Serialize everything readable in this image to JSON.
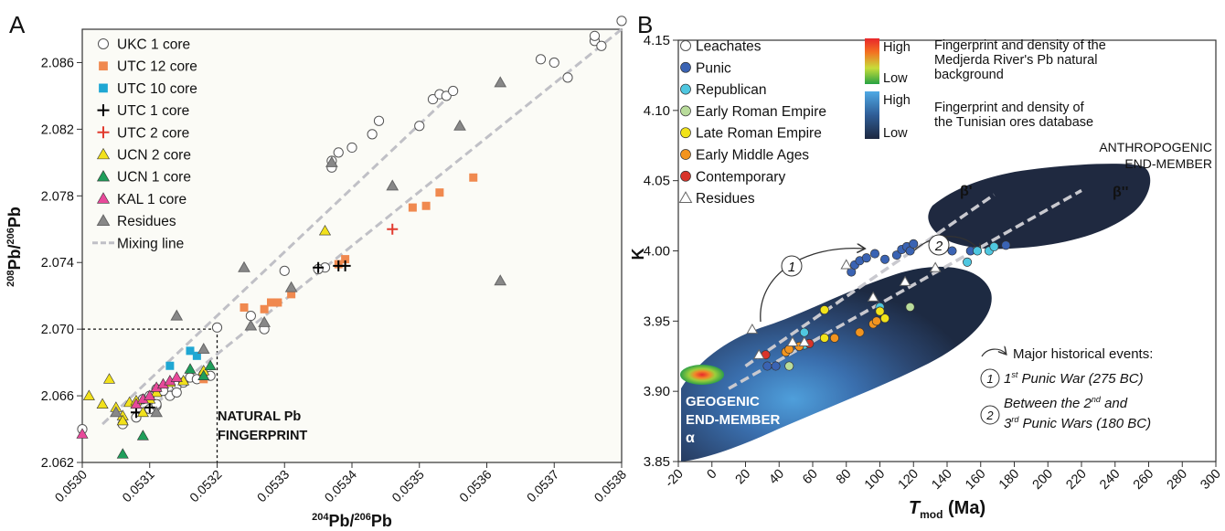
{
  "chart_data": [
    {
      "panel_label": "A",
      "type": "scatter",
      "xlabel": {
        "sup": "204",
        "a": "Pb/",
        "sup2": "206",
        "b": "Pb"
      },
      "ylabel": {
        "sup": "208",
        "a": "Pb/",
        "sup2": "206",
        "b": "Pb"
      },
      "xlim": [
        0.053,
        0.0538
      ],
      "ylim": [
        2.062,
        2.088
      ],
      "xticks": [
        "0.0530",
        "0.0531",
        "0.0532",
        "0.0533",
        "0.0534",
        "0.0535",
        "0.0536",
        "0.0537",
        "0.0538"
      ],
      "xtick_values": [
        0.053,
        0.0531,
        0.0532,
        0.0533,
        0.0534,
        0.0535,
        0.0536,
        0.0537,
        0.0538
      ],
      "yticks": [
        "2.062",
        "2.066",
        "2.070",
        "2.074",
        "2.078",
        "2.082",
        "2.086"
      ],
      "ytick_values": [
        2.062,
        2.066,
        2.07,
        2.074,
        2.078,
        2.082,
        2.086
      ],
      "legend_position": "top-left",
      "annotation_lines": [
        "NATURAL Pb",
        "FINGERPRINT"
      ],
      "fingerprint_box": {
        "x": 0.0532,
        "y": 2.07
      },
      "mixing_lines": [
        [
          [
            0.05303,
            2.0643
          ],
          [
            0.05355,
            2.0842
          ]
        ],
        [
          [
            0.05308,
            2.0646
          ],
          [
            0.0538,
            2.088
          ]
        ]
      ],
      "series": [
        {
          "name": "UKC 1 core",
          "marker": "circle-open",
          "color": "#777777",
          "points": [
            [
              0.053,
              2.064
            ],
            [
              0.05306,
              2.0643
            ],
            [
              0.05308,
              2.0647
            ],
            [
              0.0531,
              2.0652
            ],
            [
              0.05311,
              2.0654
            ],
            [
              0.05309,
              2.0658
            ],
            [
              0.0531,
              2.066
            ],
            [
              0.05311,
              2.0655
            ],
            [
              0.05313,
              2.066
            ],
            [
              0.05312,
              2.0663
            ],
            [
              0.05314,
              2.0666
            ],
            [
              0.05315,
              2.0668
            ],
            [
              0.05316,
              2.0671
            ],
            [
              0.05317,
              2.067
            ],
            [
              0.05318,
              2.0673
            ],
            [
              0.05314,
              2.0662
            ],
            [
              0.05311,
              2.0664
            ],
            [
              0.05319,
              2.0672
            ],
            [
              0.0532,
              2.0701
            ],
            [
              0.05325,
              2.0708
            ],
            [
              0.05327,
              2.07
            ],
            [
              0.0533,
              2.0735
            ],
            [
              0.05336,
              2.0737
            ],
            [
              0.05337,
              2.0797
            ],
            [
              0.05337,
              2.0801
            ],
            [
              0.05338,
              2.0806
            ],
            [
              0.0534,
              2.0809
            ],
            [
              0.05343,
              2.0817
            ],
            [
              0.05344,
              2.0825
            ],
            [
              0.0535,
              2.0822
            ],
            [
              0.05352,
              2.0838
            ],
            [
              0.05353,
              2.0841
            ],
            [
              0.05354,
              2.084
            ],
            [
              0.05355,
              2.0843
            ],
            [
              0.05368,
              2.0862
            ],
            [
              0.0537,
              2.086
            ],
            [
              0.05372,
              2.0851
            ],
            [
              0.05376,
              2.0873
            ],
            [
              0.05376,
              2.0876
            ],
            [
              0.05377,
              2.087
            ],
            [
              0.0538,
              2.0885
            ],
            [
              0.05335,
              2.0736
            ]
          ]
        },
        {
          "name": "UTC 12 core",
          "marker": "square",
          "color": "#f0894f",
          "points": [
            [
              0.05324,
              2.0713
            ],
            [
              0.05327,
              2.0712
            ],
            [
              0.05328,
              2.0716
            ],
            [
              0.05329,
              2.0716
            ],
            [
              0.05331,
              2.0721
            ],
            [
              0.05338,
              2.0739
            ],
            [
              0.05339,
              2.0742
            ],
            [
              0.05349,
              2.0773
            ],
            [
              0.05351,
              2.0774
            ],
            [
              0.05353,
              2.0782
            ],
            [
              0.05358,
              2.0791
            ],
            [
              0.05318,
              2.067
            ]
          ]
        },
        {
          "name": "UTC 10 core",
          "marker": "square",
          "color": "#1fa7d3",
          "points": [
            [
              0.05313,
              2.0678
            ],
            [
              0.05316,
              2.0687
            ],
            [
              0.05317,
              2.0684
            ]
          ]
        },
        {
          "name": "UTC 1 core",
          "marker": "plus",
          "color": "#000000",
          "points": [
            [
              0.05308,
              2.065
            ],
            [
              0.0531,
              2.0653
            ],
            [
              0.05335,
              2.0737
            ],
            [
              0.05338,
              2.0738
            ],
            [
              0.05339,
              2.0738
            ]
          ]
        },
        {
          "name": "UTC 2 core",
          "marker": "plus",
          "color": "#e23b2e",
          "points": [
            [
              0.05346,
              2.076
            ]
          ]
        },
        {
          "name": "UCN 2 core",
          "marker": "triangle",
          "color": "#f2e11b",
          "points": [
            [
              0.05301,
              2.066
            ],
            [
              0.05303,
              2.0655
            ],
            [
              0.05304,
              2.067
            ],
            [
              0.05305,
              2.0653
            ],
            [
              0.05306,
              2.0648
            ],
            [
              0.05306,
              2.0645
            ],
            [
              0.05307,
              2.0656
            ],
            [
              0.05308,
              2.0657
            ],
            [
              0.05309,
              2.065
            ],
            [
              0.0531,
              2.0658
            ],
            [
              0.05311,
              2.0662
            ],
            [
              0.05313,
              2.0668
            ],
            [
              0.05315,
              2.0669
            ],
            [
              0.05318,
              2.0675
            ],
            [
              0.05336,
              2.0759
            ]
          ]
        },
        {
          "name": "UCN 1 core",
          "marker": "triangle",
          "color": "#1f9e5a",
          "points": [
            [
              0.05306,
              2.0625
            ],
            [
              0.05309,
              2.0636
            ],
            [
              0.05316,
              2.0676
            ],
            [
              0.05318,
              2.0672
            ],
            [
              0.05319,
              2.0678
            ]
          ]
        },
        {
          "name": "KAL 1 core",
          "marker": "triangle",
          "color": "#e8499a",
          "points": [
            [
              0.05308,
              2.0655
            ],
            [
              0.05309,
              2.0658
            ],
            [
              0.0531,
              2.066
            ],
            [
              0.05311,
              2.0665
            ],
            [
              0.05312,
              2.0667
            ],
            [
              0.05313,
              2.0669
            ],
            [
              0.05314,
              2.0671
            ],
            [
              0.053,
              2.0637
            ]
          ]
        },
        {
          "name": "Residues",
          "marker": "triangle-open",
          "color": "#888888",
          "points": [
            [
              0.05305,
              2.065
            ],
            [
              0.05311,
              2.065
            ],
            [
              0.05314,
              2.0708
            ],
            [
              0.05318,
              2.0688
            ],
            [
              0.05324,
              2.0737
            ],
            [
              0.05325,
              2.0702
            ],
            [
              0.05327,
              2.0704
            ],
            [
              0.05331,
              2.0725
            ],
            [
              0.05337,
              2.08
            ],
            [
              0.05346,
              2.0786
            ],
            [
              0.05356,
              2.0822
            ],
            [
              0.05362,
              2.0848
            ],
            [
              0.05362,
              2.0729
            ]
          ]
        }
      ],
      "legend_items": [
        {
          "label": "UKC 1 core",
          "marker": "circle-open",
          "color": "#777777"
        },
        {
          "label": "UTC 12 core",
          "marker": "square",
          "color": "#f0894f"
        },
        {
          "label": "UTC 10 core",
          "marker": "square",
          "color": "#1fa7d3"
        },
        {
          "label": "UTC 1 core",
          "marker": "plus",
          "color": "#000000"
        },
        {
          "label": "UTC 2 core",
          "marker": "plus",
          "color": "#e23b2e"
        },
        {
          "label": "UCN 2 core",
          "marker": "triangle",
          "color": "#f2e11b"
        },
        {
          "label": "UCN 1 core",
          "marker": "triangle",
          "color": "#1f9e5a"
        },
        {
          "label": "KAL 1 core",
          "marker": "triangle",
          "color": "#e8499a"
        },
        {
          "label": "Residues",
          "marker": "triangle-open",
          "color": "#888888"
        },
        {
          "label": "Mixing line",
          "marker": "dash",
          "color": "#c0c0c6"
        }
      ]
    },
    {
      "panel_label": "B",
      "type": "scatter",
      "xlabel": {
        "italic": "T",
        "sub": "mod",
        "rest": " (Ma)"
      },
      "ylabel": "K",
      "xlim": [
        -20,
        300
      ],
      "ylim": [
        3.85,
        4.15
      ],
      "xticks": [
        "-20",
        "0",
        "20",
        "40",
        "60",
        "80",
        "100",
        "120",
        "140",
        "160",
        "180",
        "200",
        "220",
        "240",
        "260",
        "280",
        "300"
      ],
      "xtick_values": [
        -20,
        0,
        20,
        40,
        60,
        80,
        100,
        120,
        140,
        160,
        180,
        200,
        220,
        240,
        260,
        280,
        300
      ],
      "yticks": [
        "3.85",
        "3.90",
        "3.95",
        "4.00",
        "4.05",
        "4.10",
        "4.15"
      ],
      "ytick_values": [
        3.85,
        3.9,
        3.95,
        4.0,
        4.05,
        4.1,
        4.15
      ],
      "legend_position": "top-left",
      "density_legend": [
        {
          "high": "High",
          "low": "Low",
          "lines": [
            "Fingerprint and density of the",
            "Medjerda River's Pb natural",
            "background"
          ]
        },
        {
          "high": "High",
          "low": "Low",
          "lines": [
            "Fingerprint and density of",
            "the Tunisian ores database"
          ]
        }
      ],
      "labels": {
        "anthropogenic": [
          "ANTHROPOGENIC",
          "END-MEMBER"
        ],
        "geogenic": [
          "GEOGENIC",
          "END-MEMBER"
        ],
        "alpha": "α",
        "beta1": "β'",
        "beta2": "β''"
      },
      "events": {
        "title": "Major historical events:",
        "event1": {
          "num": "1",
          "sup": "st",
          "rest": " Punic War (275 BC)"
        },
        "event2_line1": {
          "a": "Between the 2",
          "sup": "nd",
          "b": " and"
        },
        "event2_line2": {
          "a": "3",
          "sup": "rd",
          "b": " Punic Wars (180 BC)"
        },
        "marker1": "1",
        "marker2": "2"
      },
      "mixing_lines": [
        [
          [
            20,
            3.918
          ],
          [
            168,
            4.04
          ]
        ],
        [
          [
            10,
            3.902
          ],
          [
            220,
            4.043
          ]
        ]
      ],
      "series": [
        {
          "name": "Leachates",
          "marker": "circle-open",
          "color": "#ffffff",
          "points": []
        },
        {
          "name": "Punic",
          "marker": "circle",
          "color": "#3a63b3",
          "points": [
            [
              83,
              3.985
            ],
            [
              85,
              3.99
            ],
            [
              88,
              3.993
            ],
            [
              92,
              3.995
            ],
            [
              97,
              3.998
            ],
            [
              103,
              3.994
            ],
            [
              110,
              3.997
            ],
            [
              113,
              4.001
            ],
            [
              116,
              4.003
            ],
            [
              118,
              4.0
            ],
            [
              120,
              4.005
            ],
            [
              143,
              4.0
            ],
            [
              154,
              4.0
            ],
            [
              175,
              4.004
            ],
            [
              33,
              3.918
            ],
            [
              38,
              3.918
            ]
          ]
        },
        {
          "name": "Republican",
          "marker": "circle",
          "color": "#4fc7e0",
          "points": [
            [
              152,
              3.992
            ],
            [
              158,
              4.0
            ],
            [
              165,
              4.0
            ],
            [
              168,
              4.003
            ],
            [
              100,
              3.96
            ],
            [
              55,
              3.942
            ],
            [
              55,
              3.933
            ]
          ]
        },
        {
          "name": "Early Roman Empire",
          "marker": "circle",
          "color": "#b9dc9b",
          "points": [
            [
              118,
              3.96
            ],
            [
              46,
              3.918
            ]
          ]
        },
        {
          "name": "Late Roman Empire",
          "marker": "circle",
          "color": "#f1e31a",
          "points": [
            [
              67,
              3.958
            ],
            [
              67,
              3.938
            ],
            [
              103,
              3.952
            ],
            [
              100,
              3.957
            ]
          ]
        },
        {
          "name": "Early Middle Ages",
          "marker": "circle",
          "color": "#f2941f",
          "points": [
            [
              44,
              3.928
            ],
            [
              46,
              3.93
            ],
            [
              52,
              3.932
            ],
            [
              73,
              3.938
            ],
            [
              88,
              3.942
            ],
            [
              96,
              3.948
            ],
            [
              98,
              3.95
            ]
          ]
        },
        {
          "name": "Contemporary",
          "marker": "circle",
          "color": "#d8342a",
          "points": [
            [
              32,
              3.926
            ],
            [
              58,
              3.934
            ]
          ]
        },
        {
          "name": "Residues",
          "marker": "triangle-open",
          "color": "#ffffff",
          "points": [
            [
              24,
              3.944
            ],
            [
              28,
              3.926
            ],
            [
              48,
              3.935
            ],
            [
              55,
              3.935
            ],
            [
              80,
              3.99
            ],
            [
              96,
              3.967
            ],
            [
              115,
              3.978
            ],
            [
              133,
              3.988
            ]
          ]
        }
      ],
      "legend_items": [
        {
          "label": "Leachates",
          "marker": "circle-open",
          "color": "#ffffff"
        },
        {
          "label": "Punic",
          "marker": "circle",
          "color": "#3a63b3"
        },
        {
          "label": "Republican",
          "marker": "circle",
          "color": "#4fc7e0"
        },
        {
          "label": "Early Roman Empire",
          "marker": "circle",
          "color": "#b9dc9b"
        },
        {
          "label": "Late Roman Empire",
          "marker": "circle",
          "color": "#f1e31a"
        },
        {
          "label": "Early Middle Ages",
          "marker": "circle",
          "color": "#f2941f"
        },
        {
          "label": "Contemporary",
          "marker": "circle",
          "color": "#d8342a"
        },
        {
          "label": "Residues",
          "marker": "triangle-open",
          "color": "#ffffff"
        }
      ]
    }
  ]
}
